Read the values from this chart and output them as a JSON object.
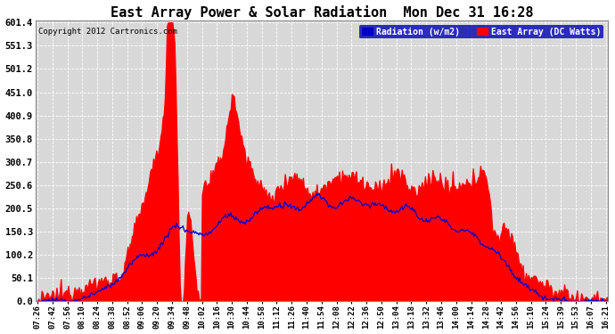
{
  "title": "East Array Power & Solar Radiation  Mon Dec 31 16:28",
  "copyright": "Copyright 2012 Cartronics.com",
  "legend_labels": [
    "Radiation (w/m2)",
    "East Array (DC Watts)"
  ],
  "legend_colors": [
    "#0000cc",
    "#ff0000"
  ],
  "fill_color": "#ff0000",
  "line_color": "#0000cc",
  "background_color": "#ffffff",
  "plot_bg_color": "#d8d8d8",
  "grid_color": "#ffffff",
  "ymax": 601.4,
  "ymin": 0.0,
  "yticks": [
    0.0,
    50.1,
    100.2,
    150.3,
    200.5,
    250.6,
    300.7,
    350.8,
    400.9,
    451.0,
    501.2,
    551.3,
    601.4
  ],
  "time_labels": [
    "07:26",
    "07:42",
    "07:56",
    "08:10",
    "08:24",
    "08:38",
    "08:52",
    "09:06",
    "09:20",
    "09:34",
    "09:48",
    "10:02",
    "10:16",
    "10:30",
    "10:44",
    "10:58",
    "11:12",
    "11:26",
    "11:40",
    "11:54",
    "12:08",
    "12:22",
    "12:36",
    "12:50",
    "13:04",
    "13:18",
    "13:32",
    "13:46",
    "14:00",
    "14:14",
    "14:28",
    "14:42",
    "14:56",
    "15:10",
    "15:24",
    "15:39",
    "15:53",
    "16:07",
    "16:21"
  ]
}
